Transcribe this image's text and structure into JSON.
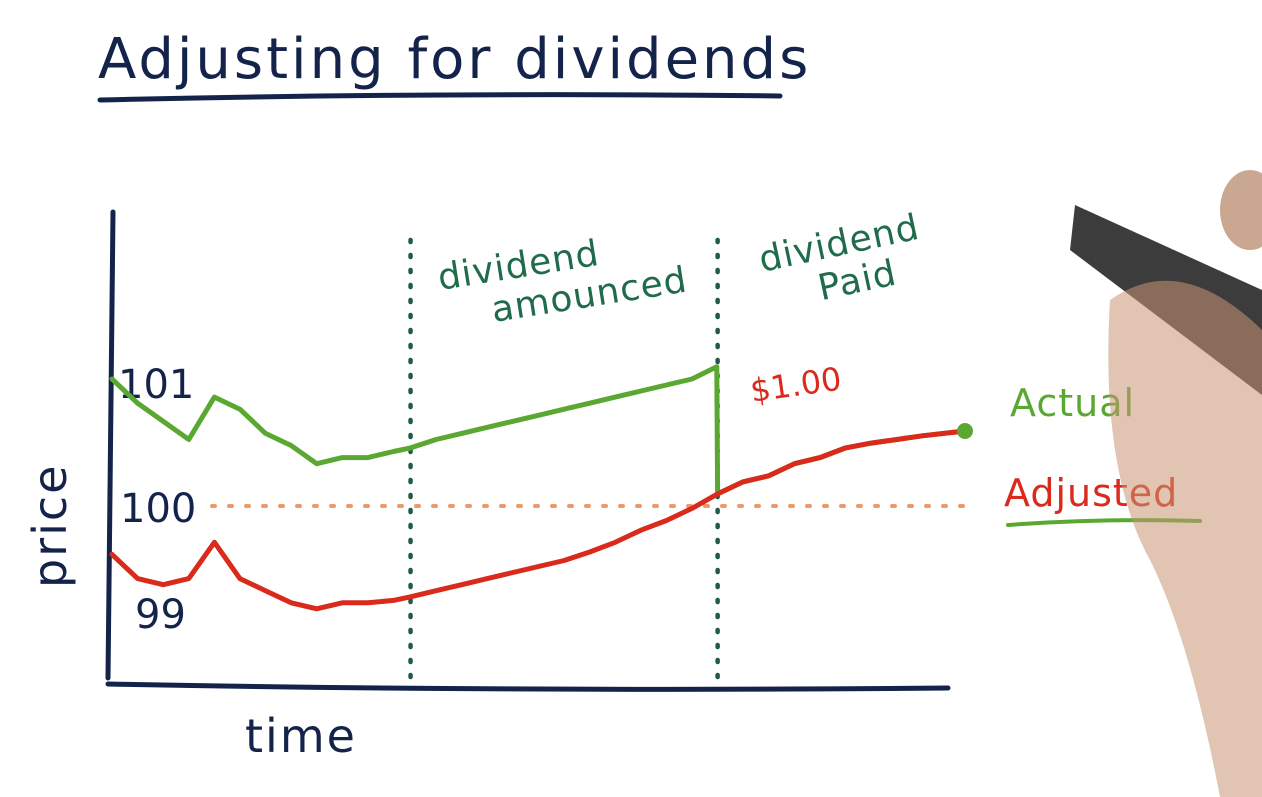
{
  "title": "Adjusting for dividends",
  "chart_data": {
    "type": "line",
    "xlabel": "time",
    "ylabel": "price",
    "x_range": [
      0,
      100
    ],
    "y_ticks": [
      "101",
      "100",
      "99"
    ],
    "ylim": [
      98.5,
      101.6
    ],
    "reference_line": {
      "y": 100,
      "style": "dotted"
    },
    "events": [
      {
        "x": 35,
        "label_lines": [
          "dividend",
          "amounced"
        ]
      },
      {
        "x": 71,
        "label_lines": [
          "dividend",
          "Paid"
        ]
      }
    ],
    "annotation": {
      "text": "$1.00",
      "near_x": 71
    },
    "series": [
      {
        "name": "Actual",
        "color": "#5aa832",
        "x": [
          0,
          3,
          6,
          9,
          12,
          15,
          18,
          21,
          24,
          27,
          30,
          33,
          35,
          38,
          41,
          44,
          47,
          50,
          53,
          56,
          59,
          62,
          65,
          68,
          70.9,
          71,
          74,
          77,
          80,
          83,
          86,
          89,
          92,
          95,
          100
        ],
        "y": [
          101.05,
          100.85,
          100.7,
          100.55,
          100.9,
          100.8,
          100.6,
          100.5,
          100.35,
          100.4,
          100.4,
          100.45,
          100.48,
          100.55,
          100.6,
          100.65,
          100.7,
          100.75,
          100.8,
          100.85,
          100.9,
          100.95,
          101.0,
          101.05,
          101.15,
          100.1,
          100.2,
          100.25,
          100.35,
          100.4,
          100.48,
          100.52,
          100.55,
          100.58,
          100.62
        ]
      },
      {
        "name": "Adjusted",
        "color": "#d92a1c",
        "x": [
          0,
          3,
          6,
          9,
          12,
          15,
          18,
          21,
          24,
          27,
          30,
          33,
          35,
          38,
          41,
          44,
          47,
          50,
          53,
          56,
          59,
          62,
          65,
          68,
          71,
          74,
          77,
          80,
          83,
          86,
          89,
          92,
          95,
          100
        ],
        "y": [
          99.6,
          99.4,
          99.35,
          99.4,
          99.7,
          99.4,
          99.3,
          99.2,
          99.15,
          99.2,
          99.2,
          99.22,
          99.25,
          99.3,
          99.35,
          99.4,
          99.45,
          99.5,
          99.55,
          99.62,
          99.7,
          99.8,
          99.88,
          99.98,
          100.1,
          100.2,
          100.25,
          100.35,
          100.4,
          100.48,
          100.52,
          100.55,
          100.58,
          100.62
        ]
      }
    ]
  }
}
